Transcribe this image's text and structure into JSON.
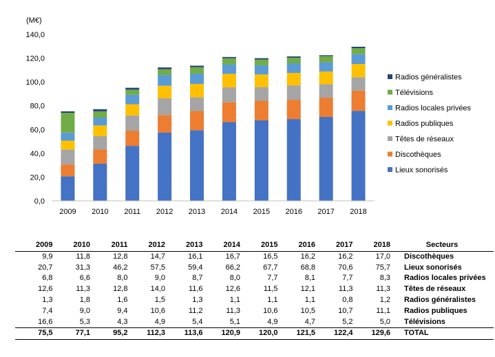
{
  "chart_data": {
    "type": "bar",
    "stacked": true,
    "unit_label": "(M€)",
    "categories": [
      "2009",
      "2010",
      "2011",
      "2012",
      "2013",
      "2014",
      "2015",
      "2016",
      "2017",
      "2018"
    ],
    "ylim": [
      0,
      140
    ],
    "yticks": [
      "0,0",
      "20,0",
      "40,0",
      "60,0",
      "80,0",
      "100,0",
      "120,0",
      "140,0"
    ],
    "grid": false,
    "legend_position": "right",
    "series": [
      {
        "name": "Lieux sonorisés",
        "color": "#4472C4",
        "values": [
          20.7,
          31.3,
          46.2,
          57.5,
          59.4,
          66.2,
          67.7,
          68.8,
          70.6,
          75.7
        ]
      },
      {
        "name": "Discothèques",
        "color": "#ED7D31",
        "values": [
          9.9,
          11.8,
          12.8,
          14.7,
          16.1,
          16.7,
          16.5,
          16.2,
          16.2,
          17.0
        ]
      },
      {
        "name": "Têtes de réseaux",
        "color": "#A5A5A5",
        "values": [
          12.6,
          11.3,
          12.8,
          14.0,
          11.6,
          12.6,
          11.5,
          12.1,
          11.3,
          11.3
        ]
      },
      {
        "name": "Radios publiques",
        "color": "#FFC000",
        "values": [
          7.4,
          9.0,
          9.4,
          10.6,
          11.2,
          11.3,
          10.6,
          10.5,
          10.7,
          11.1
        ]
      },
      {
        "name": "Radios locales privées",
        "color": "#5B9BD5",
        "values": [
          6.8,
          6.6,
          8.0,
          9.0,
          8.7,
          8.0,
          7.7,
          8.1,
          7.7,
          8.3
        ]
      },
      {
        "name": "Télévisions",
        "color": "#70AD47",
        "values": [
          16.6,
          5.3,
          4.3,
          4.9,
          5.4,
          5.1,
          4.9,
          4.7,
          5.2,
          5.0
        ]
      },
      {
        "name": "Radios généralistes",
        "color": "#264478",
        "values": [
          1.3,
          1.8,
          1.6,
          1.5,
          1.3,
          1.1,
          1.1,
          1.1,
          0.8,
          1.2
        ]
      }
    ],
    "legend_order": [
      "Radios généralistes",
      "Télévisions",
      "Radios locales privées",
      "Radios publiques",
      "Têtes de réseaux",
      "Discothèques",
      "Lieux sonorisés"
    ]
  },
  "table": {
    "header_years": [
      "2009",
      "2010",
      "2011",
      "2012",
      "2013",
      "2014",
      "2015",
      "2016",
      "2017",
      "2018"
    ],
    "header_label": "Secteurs",
    "rows": [
      {
        "values": [
          "9,9",
          "11,8",
          "12,8",
          "14,7",
          "16,1",
          "16,7",
          "16,5",
          "16,2",
          "16,2",
          "17,0"
        ],
        "label": "Discothèques"
      },
      {
        "values": [
          "20,7",
          "31,3",
          "46,2",
          "57,5",
          "59,4",
          "66,2",
          "67,7",
          "68,8",
          "70,6",
          "75,7"
        ],
        "label": "Lieux sonorisés"
      },
      {
        "values": [
          "6,8",
          "6,6",
          "8,0",
          "9,0",
          "8,7",
          "8,0",
          "7,7",
          "8,1",
          "7,7",
          "8,3"
        ],
        "label": "Radios locales privées"
      },
      {
        "values": [
          "12,6",
          "11,3",
          "12,8",
          "14,0",
          "11,6",
          "12,6",
          "11,5",
          "12,1",
          "11,3",
          "11,3"
        ],
        "label": "Têtes de réseaux"
      },
      {
        "values": [
          "1,3",
          "1,8",
          "1,6",
          "1,5",
          "1,3",
          "1,1",
          "1,1",
          "1,1",
          "0,8",
          "1,2"
        ],
        "label": "Radios généralistes"
      },
      {
        "values": [
          "7,4",
          "9,0",
          "9,4",
          "10,6",
          "11,2",
          "11,3",
          "10,6",
          "10,5",
          "10,7",
          "11,1"
        ],
        "label": "Radios publiques"
      },
      {
        "values": [
          "16,6",
          "5,3",
          "4,3",
          "4,9",
          "5,4",
          "5,1",
          "4,9",
          "4,7",
          "5,2",
          "5,0"
        ],
        "label": "Télévisions"
      }
    ],
    "total": {
      "values": [
        "75,5",
        "77,1",
        "95,2",
        "112,3",
        "113,6",
        "120,9",
        "120,0",
        "121,5",
        "122,4",
        "129,6"
      ],
      "label": "TOTAL"
    }
  }
}
